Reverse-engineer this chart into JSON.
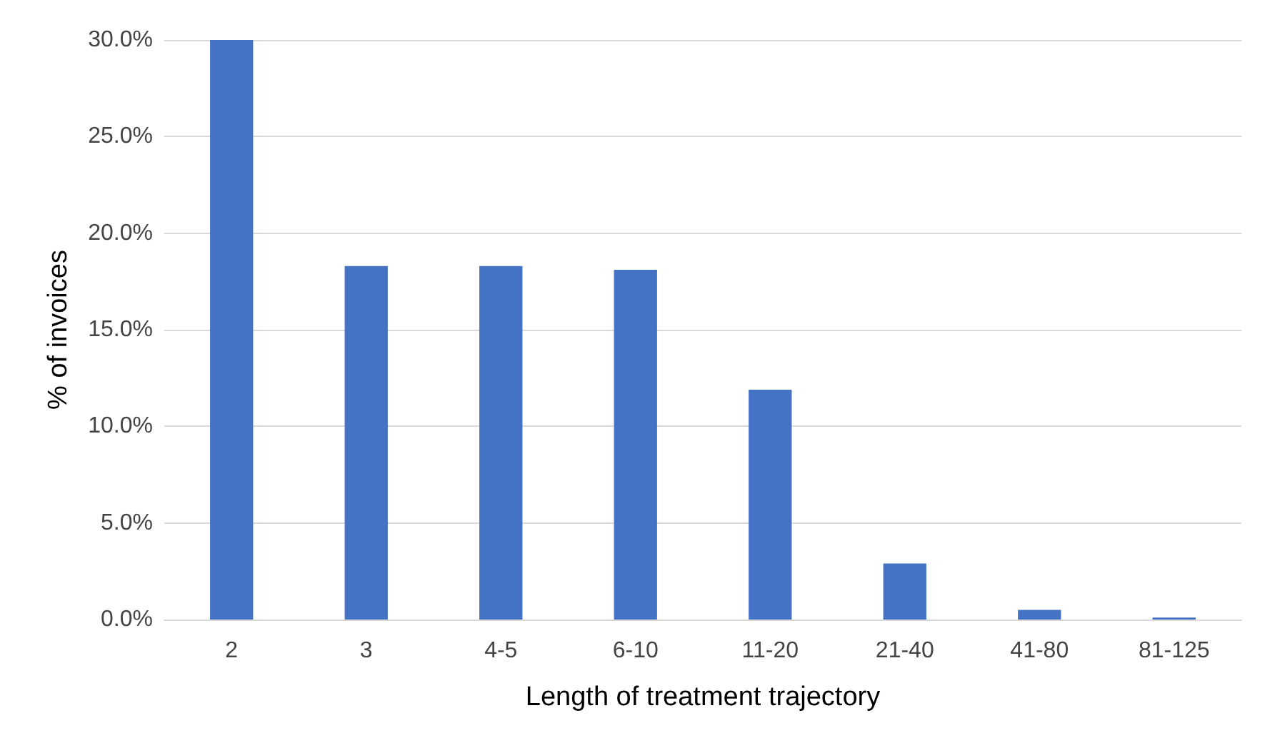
{
  "chart_data": {
    "type": "bar",
    "xlabel": "Length of treatment trajectory",
    "ylabel": "% of invoices",
    "categories": [
      "2",
      "3",
      "4-5",
      "6-10",
      "11-20",
      "21-40",
      "41-80",
      "81-125"
    ],
    "values": [
      30.0,
      18.3,
      18.3,
      18.1,
      11.9,
      2.9,
      0.5,
      0.1
    ],
    "color": "#4472c4",
    "ylim": [
      0,
      30
    ],
    "yticks": [
      {
        "value": 0,
        "label": "0.0%"
      },
      {
        "value": 5,
        "label": "5.0%"
      },
      {
        "value": 10,
        "label": "10.0%"
      },
      {
        "value": 15,
        "label": "15.0%"
      },
      {
        "value": 20,
        "label": "20.0%"
      },
      {
        "value": 25,
        "label": "25.0%"
      },
      {
        "value": 30,
        "label": "30.0%"
      }
    ],
    "grid": "y"
  }
}
